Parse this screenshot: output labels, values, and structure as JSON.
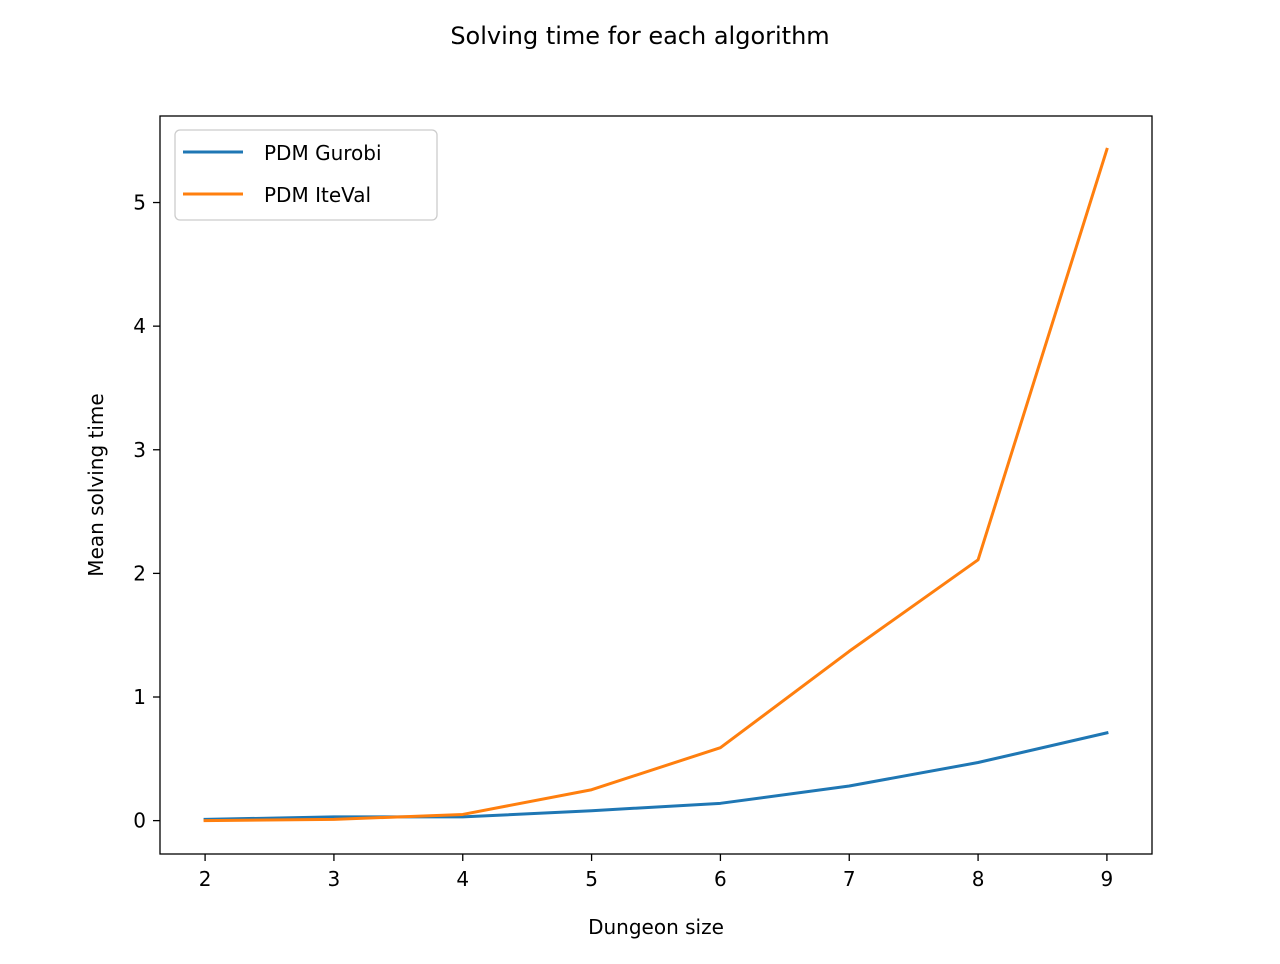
{
  "chart_data": {
    "type": "line",
    "title": "Solving time for each algorithm",
    "xlabel": "Dungeon size",
    "ylabel": "Mean solving time",
    "x": [
      2,
      3,
      4,
      5,
      6,
      7,
      8,
      9
    ],
    "xlim": [
      1.65,
      9.35
    ],
    "ylim": [
      -0.27,
      5.7
    ],
    "xticks": [
      2,
      3,
      4,
      5,
      6,
      7,
      8,
      9
    ],
    "yticks": [
      0,
      1,
      2,
      3,
      4,
      5
    ],
    "grid": false,
    "legend_position": "upper-left",
    "series": [
      {
        "name": "PDM Gurobi",
        "color": "#1f77b4",
        "values": [
          0.01,
          0.03,
          0.03,
          0.08,
          0.14,
          0.28,
          0.47,
          0.71
        ]
      },
      {
        "name": "PDM IteVal",
        "color": "#ff7f0e",
        "values": [
          0.0,
          0.01,
          0.05,
          0.25,
          0.59,
          1.37,
          2.11,
          5.43
        ]
      }
    ]
  }
}
